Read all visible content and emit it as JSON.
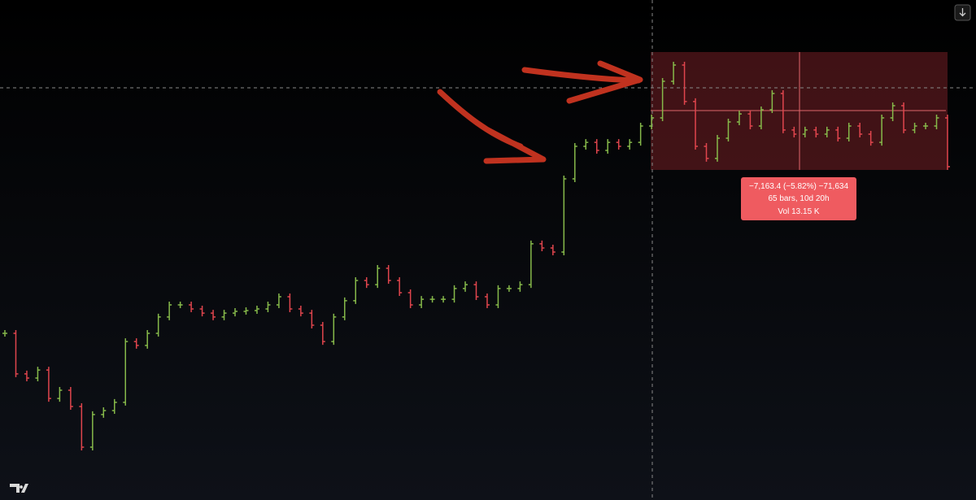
{
  "measure": {
    "change": "−7,163.4 (−5.82%) −71,634",
    "bars": "65 bars, 10d 20h",
    "volume": "Vol 13.15 K"
  },
  "chart_data": {
    "type": "ohlc",
    "values": [
      105960,
      103490,
      103240,
      103730,
      102000,
      102500,
      101510,
      99040,
      101020,
      101260,
      101760,
      105460,
      105220,
      105960,
      106950,
      107690,
      107690,
      107440,
      107190,
      106950,
      107190,
      107290,
      107340,
      107440,
      107690,
      108180,
      107440,
      107190,
      106450,
      105460,
      106950,
      107940,
      109170,
      108920,
      109910,
      109170,
      108430,
      107690,
      108030,
      108030,
      108030,
      108680,
      108920,
      108180,
      107690,
      108680,
      108680,
      108920,
      111400,
      111150,
      110900,
      115350,
      117330,
      117570,
      117080,
      117570,
      117330,
      117570,
      118560,
      119060,
      121280,
      122270,
      120050,
      117330,
      116590,
      117820,
      118810,
      119300,
      118560,
      119550,
      120540,
      118320,
      118070,
      118320,
      118070,
      118320,
      117820,
      118560,
      118070,
      117570,
      119060,
      119800,
      118320,
      118560,
      118560,
      119060,
      116090
    ],
    "ylim": [
      98000,
      124000
    ],
    "up_color": "#86b94a",
    "down_color": "#e0454d"
  }
}
